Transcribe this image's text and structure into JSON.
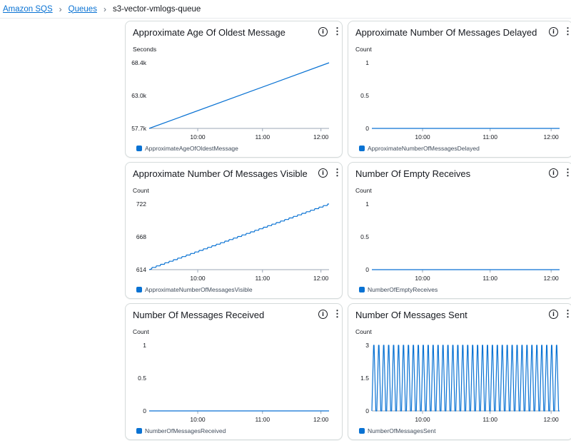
{
  "breadcrumb": {
    "items": [
      "Amazon SQS",
      "Queues"
    ],
    "current": "s3-vector-vmlogs-queue"
  },
  "icons": {
    "info": "info-icon",
    "more": "more-vertical-icon",
    "separator": "chevron-right-icon"
  },
  "colors": {
    "series": "#0972d3",
    "link": "#0972d3"
  },
  "chart_data": [
    {
      "type": "line",
      "title": "Approximate Age Of Oldest Message",
      "ylabel": "Seconds",
      "y_ticks": [
        "68.4k",
        "63.0k",
        "57.7k"
      ],
      "ylim": [
        57.7,
        68.4
      ],
      "x_ticks": [
        "10:00",
        "11:00",
        "12:00"
      ],
      "series": [
        {
          "name": "ApproximateAgeOfOldestMessage",
          "values": [
            57.7,
            68.4
          ]
        }
      ]
    },
    {
      "type": "line",
      "title": "Approximate Number Of Messages Delayed",
      "ylabel": "Count",
      "y_ticks": [
        "1",
        "0.5",
        "0"
      ],
      "ylim": [
        0,
        1
      ],
      "x_ticks": [
        "10:00",
        "11:00",
        "12:00"
      ],
      "series": [
        {
          "name": "ApproximateNumberOfMessagesDelayed",
          "values": [
            0,
            0
          ]
        }
      ]
    },
    {
      "type": "line",
      "title": "Approximate Number Of Messages Visible",
      "ylabel": "Count",
      "y_ticks": [
        "722",
        "668",
        "614"
      ],
      "ylim": [
        614,
        722
      ],
      "x_ticks": [
        "10:00",
        "11:00",
        "12:00"
      ],
      "series": [
        {
          "name": "ApproximateNumberOfMessagesVisible",
          "values": [
            614,
            722
          ]
        }
      ]
    },
    {
      "type": "line",
      "title": "Number Of Empty Receives",
      "ylabel": "Count",
      "y_ticks": [
        "1",
        "0.5",
        "0"
      ],
      "ylim": [
        0,
        1
      ],
      "x_ticks": [
        "10:00",
        "11:00",
        "12:00"
      ],
      "series": [
        {
          "name": "NumberOfEmptyReceives",
          "values": [
            0,
            0
          ]
        }
      ]
    },
    {
      "type": "line",
      "title": "Number Of Messages Received",
      "ylabel": "Count",
      "y_ticks": [
        "1",
        "0.5",
        "0"
      ],
      "ylim": [
        0,
        1
      ],
      "x_ticks": [
        "10:00",
        "11:00",
        "12:00"
      ],
      "series": [
        {
          "name": "NumberOfMessagesReceived",
          "values": [
            0,
            0
          ]
        }
      ]
    },
    {
      "type": "line",
      "title": "Number Of Messages Sent",
      "ylabel": "Count",
      "y_ticks": [
        "3",
        "1.5",
        "0"
      ],
      "ylim": [
        0,
        3
      ],
      "x_ticks": [
        "10:00",
        "11:00",
        "12:00"
      ],
      "series": [
        {
          "name": "NumberOfMessagesSent",
          "values": [
            0,
            3,
            3,
            0
          ]
        }
      ]
    }
  ]
}
